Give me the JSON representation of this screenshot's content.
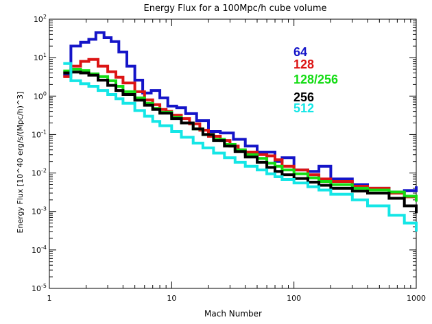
{
  "chart_data": {
    "type": "line",
    "title": "Energy Flux for a 100Mpc/h cube volume",
    "xlabel": "Mach Number",
    "ylabel": "Energy Flux [10^40 erg/s/(Mpc/h)^3]",
    "xscale": "log",
    "yscale": "log",
    "xlim": [
      1,
      1000
    ],
    "ylim": [
      1e-05,
      100
    ],
    "grid": false,
    "legend_position": "upper-right, inside plot area",
    "x_tick_labels": [
      "1",
      "10",
      "100",
      "1000"
    ],
    "y_tick_labels": [
      "10^-5",
      "10^-4",
      "10^-3",
      "10^-2",
      "10^-1",
      "10^0",
      "10^1",
      "10^2"
    ],
    "series": [
      {
        "name": "64",
        "color": "#1414c8",
        "points": [
          [
            1.3,
            3.5
          ],
          [
            1.5,
            20
          ],
          [
            1.8,
            25
          ],
          [
            2.1,
            30
          ],
          [
            2.4,
            45
          ],
          [
            2.8,
            33
          ],
          [
            3.2,
            26
          ],
          [
            3.7,
            14
          ],
          [
            4.3,
            6
          ],
          [
            5,
            2.6
          ],
          [
            5.8,
            1.2
          ],
          [
            6.8,
            1.4
          ],
          [
            8,
            0.9
          ],
          [
            9.3,
            0.55
          ],
          [
            11,
            0.5
          ],
          [
            13,
            0.35
          ],
          [
            16,
            0.23
          ],
          [
            20,
            0.12
          ],
          [
            25,
            0.11
          ],
          [
            32,
            0.075
          ],
          [
            40,
            0.05
          ],
          [
            50,
            0.035
          ],
          [
            60,
            0.035
          ],
          [
            70,
            0.02
          ],
          [
            80,
            0.025
          ],
          [
            100,
            0.012
          ],
          [
            130,
            0.011
          ],
          [
            160,
            0.015
          ],
          [
            200,
            0.007
          ],
          [
            300,
            0.005
          ],
          [
            400,
            0.004
          ],
          [
            600,
            0.0032
          ],
          [
            800,
            0.0035
          ],
          [
            1000,
            0.0045
          ]
        ]
      },
      {
        "name": "128",
        "color": "#dc1414",
        "points": [
          [
            1.3,
            3.2
          ],
          [
            1.5,
            6
          ],
          [
            1.8,
            8
          ],
          [
            2.1,
            9
          ],
          [
            2.5,
            6
          ],
          [
            3,
            4.3
          ],
          [
            3.5,
            3.1
          ],
          [
            4,
            2.2
          ],
          [
            5,
            1.3
          ],
          [
            6,
            0.8
          ],
          [
            7,
            0.6
          ],
          [
            8,
            0.45
          ],
          [
            9,
            0.4
          ],
          [
            10,
            0.32
          ],
          [
            12,
            0.26
          ],
          [
            14,
            0.19
          ],
          [
            17,
            0.13
          ],
          [
            20,
            0.09
          ],
          [
            25,
            0.07
          ],
          [
            30,
            0.05
          ],
          [
            35,
            0.04
          ],
          [
            40,
            0.035
          ],
          [
            50,
            0.03
          ],
          [
            60,
            0.028
          ],
          [
            70,
            0.022
          ],
          [
            80,
            0.015
          ],
          [
            100,
            0.012
          ],
          [
            130,
            0.009
          ],
          [
            160,
            0.007
          ],
          [
            200,
            0.006
          ],
          [
            300,
            0.0045
          ],
          [
            400,
            0.004
          ],
          [
            600,
            0.003
          ],
          [
            800,
            0.0024
          ],
          [
            1000,
            0.002
          ]
        ]
      },
      {
        "name": "128/256",
        "color": "#14dc14",
        "points": [
          [
            1.3,
            4.5
          ],
          [
            1.5,
            5
          ],
          [
            1.8,
            4.6
          ],
          [
            2.1,
            3.8
          ],
          [
            2.5,
            3.2
          ],
          [
            3,
            2.5
          ],
          [
            3.5,
            1.8
          ],
          [
            4,
            1.3
          ],
          [
            5,
            0.9
          ],
          [
            6,
            0.65
          ],
          [
            7,
            0.48
          ],
          [
            8,
            0.38
          ],
          [
            10,
            0.28
          ],
          [
            12,
            0.2
          ],
          [
            15,
            0.14
          ],
          [
            18,
            0.1
          ],
          [
            22,
            0.075
          ],
          [
            27,
            0.055
          ],
          [
            33,
            0.04
          ],
          [
            40,
            0.03
          ],
          [
            50,
            0.024
          ],
          [
            60,
            0.018
          ],
          [
            70,
            0.015
          ],
          [
            80,
            0.012
          ],
          [
            100,
            0.0095
          ],
          [
            130,
            0.0075
          ],
          [
            160,
            0.006
          ],
          [
            200,
            0.005
          ],
          [
            300,
            0.004
          ],
          [
            400,
            0.0036
          ],
          [
            600,
            0.0032
          ],
          [
            800,
            0.0025
          ],
          [
            1000,
            0.0018
          ]
        ]
      },
      {
        "name": "256",
        "color": "#000000",
        "points": [
          [
            1.3,
            4
          ],
          [
            1.5,
            4.2
          ],
          [
            1.8,
            4
          ],
          [
            2.1,
            3.5
          ],
          [
            2.5,
            2.6
          ],
          [
            3,
            1.9
          ],
          [
            3.5,
            1.4
          ],
          [
            4,
            1.1
          ],
          [
            5,
            0.78
          ],
          [
            6,
            0.58
          ],
          [
            7,
            0.45
          ],
          [
            8,
            0.36
          ],
          [
            10,
            0.26
          ],
          [
            12,
            0.2
          ],
          [
            15,
            0.14
          ],
          [
            18,
            0.1
          ],
          [
            22,
            0.07
          ],
          [
            27,
            0.05
          ],
          [
            33,
            0.036
          ],
          [
            40,
            0.026
          ],
          [
            50,
            0.019
          ],
          [
            60,
            0.014
          ],
          [
            70,
            0.011
          ],
          [
            80,
            0.009
          ],
          [
            100,
            0.0072
          ],
          [
            130,
            0.0058
          ],
          [
            160,
            0.0048
          ],
          [
            200,
            0.004
          ],
          [
            300,
            0.0034
          ],
          [
            400,
            0.003
          ],
          [
            600,
            0.0022
          ],
          [
            800,
            0.0014
          ],
          [
            1000,
            0.0009
          ]
        ]
      },
      {
        "name": "512",
        "color": "#14e6e6",
        "points": [
          [
            1.3,
            7
          ],
          [
            1.5,
            2.5
          ],
          [
            1.8,
            2.1
          ],
          [
            2.1,
            1.8
          ],
          [
            2.5,
            1.4
          ],
          [
            3,
            1.1
          ],
          [
            3.5,
            0.85
          ],
          [
            4,
            0.65
          ],
          [
            5,
            0.42
          ],
          [
            6,
            0.3
          ],
          [
            7,
            0.22
          ],
          [
            8,
            0.17
          ],
          [
            10,
            0.12
          ],
          [
            12,
            0.085
          ],
          [
            15,
            0.06
          ],
          [
            18,
            0.045
          ],
          [
            22,
            0.033
          ],
          [
            27,
            0.025
          ],
          [
            33,
            0.019
          ],
          [
            40,
            0.015
          ],
          [
            50,
            0.012
          ],
          [
            60,
            0.0095
          ],
          [
            70,
            0.008
          ],
          [
            80,
            0.0068
          ],
          [
            100,
            0.0055
          ],
          [
            130,
            0.0044
          ],
          [
            160,
            0.0036
          ],
          [
            200,
            0.0028
          ],
          [
            300,
            0.002
          ],
          [
            400,
            0.0014
          ],
          [
            600,
            0.0008
          ],
          [
            800,
            0.0005
          ],
          [
            1000,
            0.0003
          ]
        ]
      }
    ]
  }
}
